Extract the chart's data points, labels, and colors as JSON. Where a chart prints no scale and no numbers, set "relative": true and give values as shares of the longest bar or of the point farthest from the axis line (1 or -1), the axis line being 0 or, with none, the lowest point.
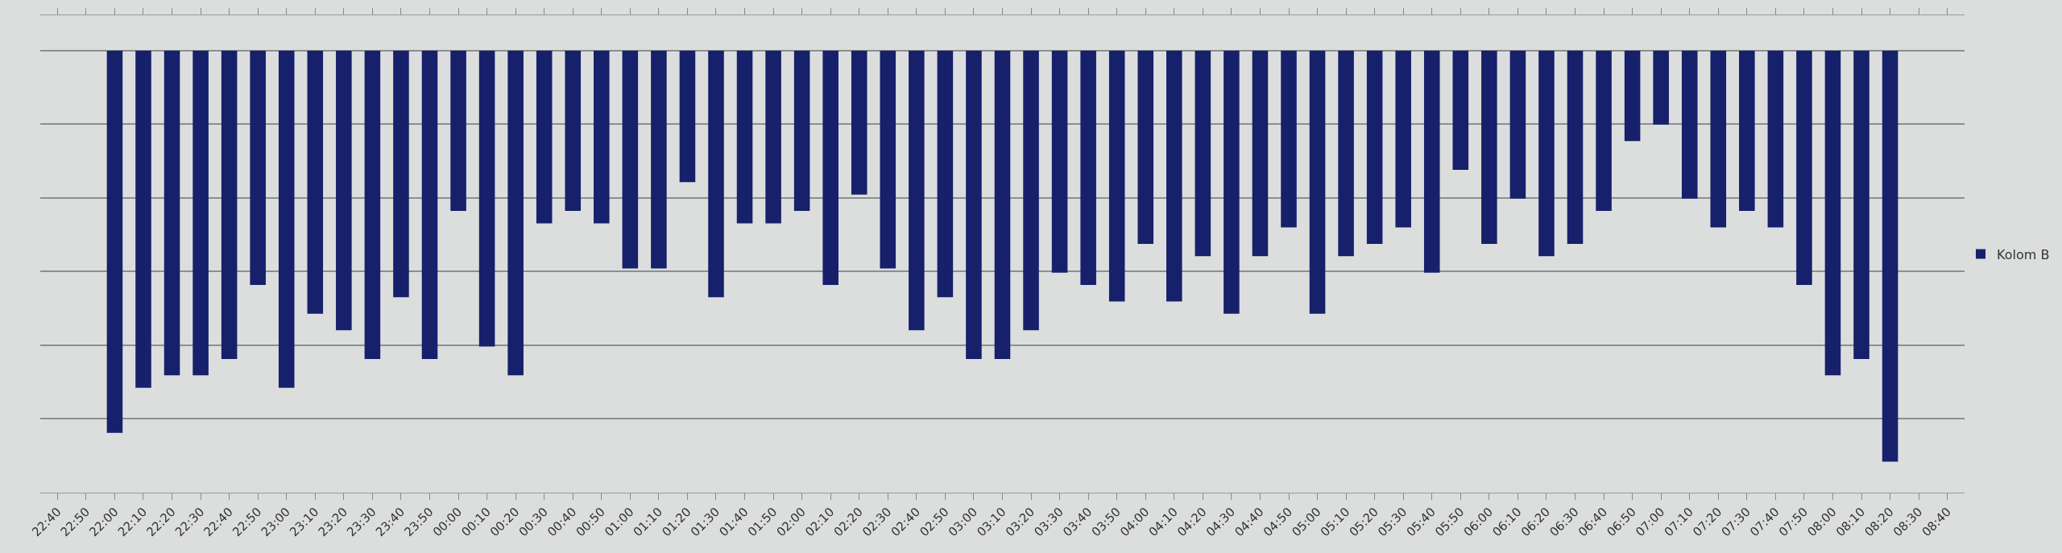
{
  "chart_data": {
    "type": "bar",
    "relative": true,
    "grid": "y",
    "legend": "right",
    "categories": [
      "22:40",
      "22:50",
      "22:00",
      "22:10",
      "22:20",
      "22:30",
      "22:40",
      "22:50",
      "23:00",
      "23:10",
      "23:20",
      "23:30",
      "23:40",
      "23:50",
      "00:00",
      "00:10",
      "00:20",
      "00:30",
      "00:40",
      "00:50",
      "01:00",
      "01:10",
      "01:20",
      "01:30",
      "01:40",
      "01:50",
      "02:00",
      "02:10",
      "02:20",
      "02:30",
      "02:40",
      "02:50",
      "03:00",
      "03:10",
      "03:20",
      "03:30",
      "03:40",
      "03:50",
      "04:00",
      "04:10",
      "04:20",
      "04:30",
      "04:40",
      "04:50",
      "05:00",
      "05:10",
      "05:20",
      "05:30",
      "05:40",
      "05:50",
      "06:00",
      "06:10",
      "06:20",
      "06:30",
      "06:40",
      "06:50",
      "07:00",
      "07:10",
      "07:20",
      "07:30",
      "07:40",
      "07:50",
      "08:00",
      "08:10",
      "08:20",
      "08:30",
      "08:40"
    ],
    "series": [
      {
        "name": "Kolom B",
        "color": "#16206b",
        "values": [
          null,
          null,
          -0.93,
          -0.82,
          -0.79,
          -0.79,
          -0.75,
          -0.57,
          -0.82,
          -0.64,
          -0.68,
          -0.75,
          -0.6,
          -0.75,
          -0.39,
          -0.72,
          -0.79,
          -0.42,
          -0.39,
          -0.42,
          -0.53,
          -0.53,
          -0.32,
          -0.6,
          -0.42,
          -0.42,
          -0.39,
          -0.57,
          -0.35,
          -0.53,
          -0.68,
          -0.6,
          -0.75,
          -0.75,
          -0.68,
          -0.54,
          -0.57,
          -0.61,
          -0.47,
          -0.61,
          -0.5,
          -0.64,
          -0.5,
          -0.43,
          -0.64,
          -0.5,
          -0.47,
          -0.43,
          -0.54,
          -0.29,
          -0.47,
          -0.36,
          -0.5,
          -0.47,
          -0.39,
          -0.22,
          -0.18,
          -0.36,
          -0.43,
          -0.39,
          -0.43,
          -0.57,
          -0.79,
          -0.75,
          -1,
          null,
          null
        ]
      }
    ]
  }
}
